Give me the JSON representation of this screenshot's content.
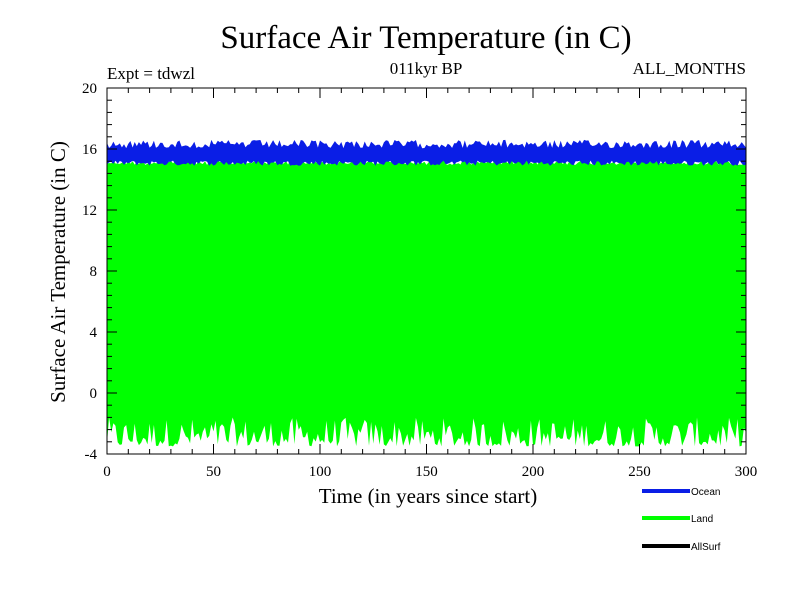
{
  "chart_data": {
    "type": "line",
    "title": "Surface Air Temperature (in C)",
    "subtitle_left": "Expt = tdwzl",
    "subtitle_center": "011kyr BP",
    "subtitle_right": "ALL_MONTHS",
    "xlabel": "Time (in years since start)",
    "ylabel": "Surface Air Temperature (in C)",
    "xlim": [
      0,
      300
    ],
    "ylim": [
      -4,
      20
    ],
    "x_ticks": [
      0,
      50,
      100,
      150,
      200,
      250,
      300
    ],
    "y_ticks": [
      -4,
      0,
      4,
      8,
      12,
      16,
      20
    ],
    "x_tick_labels": [
      "0",
      "50",
      "100",
      "150",
      "200",
      "250",
      "300"
    ],
    "y_tick_labels": [
      "-4",
      "0",
      "4",
      "8",
      "12",
      "16",
      "20"
    ],
    "grid": false,
    "legend_position": "bottom-right, below plot",
    "series": [
      {
        "name": "Ocean",
        "color": "#0a1ee6",
        "style": "monthly oscillation band",
        "band_min": 14.9,
        "band_max": 16.6,
        "mean": 15.8
      },
      {
        "name": "Land",
        "color": "#00ff00",
        "style": "monthly oscillation band",
        "band_min": -3.5,
        "band_max": 15.3,
        "mean": 6.0
      },
      {
        "name": "AllSurf",
        "color": "#000000",
        "style": "line (not visible, hidden behind bands)"
      }
    ]
  }
}
